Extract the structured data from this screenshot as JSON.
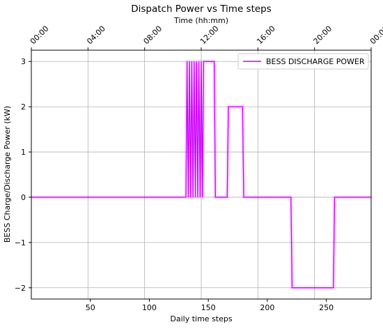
{
  "chart_data": {
    "type": "line",
    "title": "Dispatch Power vs Time steps",
    "xlabel": "Daily time steps",
    "ylabel": "BESS Charge/Discharge Power (kW)",
    "xlim": [
      0,
      288
    ],
    "ylim": [
      -2.25,
      3.25
    ],
    "x_ticks": [
      50,
      100,
      150,
      200,
      250
    ],
    "y_ticks": [
      -2,
      -1,
      0,
      1,
      2,
      3
    ],
    "grid": true,
    "legend": "top-right",
    "top_axis": {
      "label": "Time (hh:mm)",
      "ticks": [
        {
          "x": 0,
          "label": "00:00"
        },
        {
          "x": 48,
          "label": "04:00"
        },
        {
          "x": 96,
          "label": "08:00"
        },
        {
          "x": 144,
          "label": "12:00"
        },
        {
          "x": 192,
          "label": "16:00"
        },
        {
          "x": 240,
          "label": "20:00"
        },
        {
          "x": 288,
          "label": "00:00"
        }
      ]
    },
    "series": [
      {
        "name": "BESS DISCHARGE POWER",
        "color": "#cc00ff",
        "x": [
          0,
          131,
          132,
          133,
          134,
          135,
          136,
          137,
          138,
          139,
          140,
          141,
          142,
          143,
          144,
          145,
          146,
          147,
          148,
          149,
          150,
          155,
          156,
          157,
          166,
          167,
          168,
          179,
          180,
          181,
          220,
          221,
          222,
          256,
          257,
          258,
          288
        ],
        "y": [
          0,
          0,
          3,
          0,
          3,
          0,
          3,
          0,
          3,
          0,
          3,
          0,
          3,
          0,
          3,
          0,
          3,
          3,
          3,
          3,
          3,
          3,
          0,
          0,
          0,
          2,
          2,
          2,
          0,
          0,
          0,
          -2,
          -2,
          -2,
          0,
          0,
          0
        ]
      }
    ]
  }
}
